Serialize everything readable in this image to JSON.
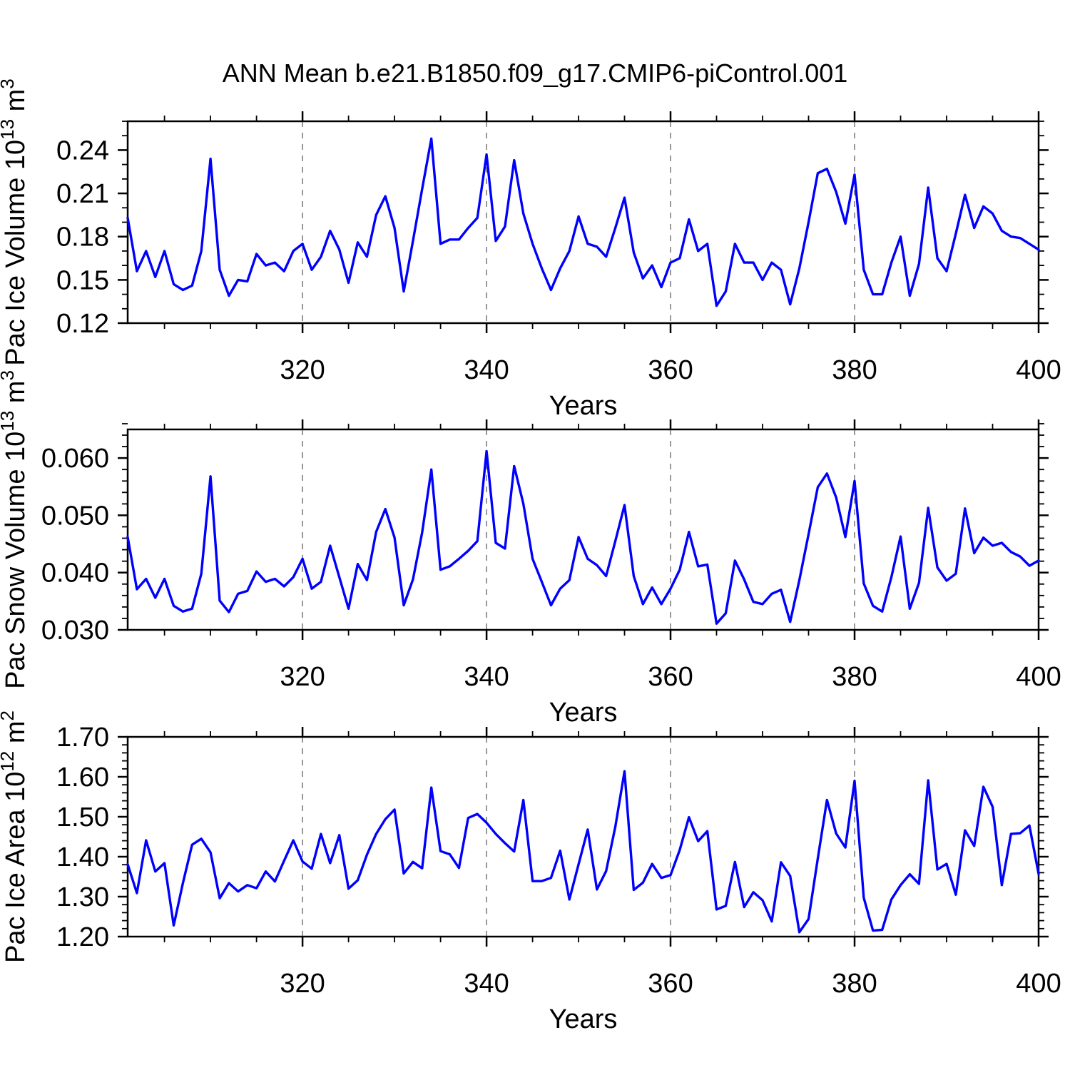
{
  "title": "ANN Mean b.e21.B1850.f09_g17.CMIP6-piControl.001",
  "colors": {
    "line": "#0000ff",
    "grid": "#808080",
    "axis": "#000000",
    "text": "#000000",
    "background": "#ffffff"
  },
  "x_axis": {
    "label": "Years",
    "x_start": 301,
    "x_end": 400,
    "x_step": 1,
    "major_ticks": [
      320,
      340,
      360,
      380,
      400
    ],
    "major_tick_labels": [
      "320",
      "340",
      "360",
      "380",
      "400"
    ],
    "minor_step": 5,
    "grid_years": [
      320,
      340,
      360,
      380
    ]
  },
  "chart_data": [
    {
      "type": "line",
      "name": "pac-ice-volume",
      "ylabel_parts": [
        {
          "text": "Pac Ice Volume 10"
        },
        {
          "text": "13",
          "sup": true
        },
        {
          "text": " m"
        },
        {
          "text": "3",
          "sup": true
        }
      ],
      "ylim": [
        0.12,
        0.26
      ],
      "yticks": {
        "major": [
          0.12,
          0.15,
          0.18,
          0.21,
          0.24
        ],
        "labels": [
          "0.12",
          "0.15",
          "0.18",
          "0.21",
          "0.24"
        ],
        "minor_step": 0.01
      },
      "values": [
        0.193,
        0.156,
        0.17,
        0.152,
        0.17,
        0.147,
        0.143,
        0.146,
        0.17,
        0.234,
        0.157,
        0.139,
        0.15,
        0.149,
        0.168,
        0.16,
        0.162,
        0.156,
        0.17,
        0.175,
        0.157,
        0.166,
        0.184,
        0.171,
        0.148,
        0.176,
        0.166,
        0.195,
        0.208,
        0.186,
        0.142,
        0.177,
        0.213,
        0.248,
        0.175,
        0.178,
        0.178,
        0.186,
        0.193,
        0.237,
        0.177,
        0.187,
        0.233,
        0.196,
        0.175,
        0.158,
        0.143,
        0.158,
        0.17,
        0.194,
        0.175,
        0.173,
        0.166,
        0.186,
        0.207,
        0.169,
        0.151,
        0.16,
        0.145,
        0.162,
        0.165,
        0.192,
        0.17,
        0.175,
        0.132,
        0.142,
        0.175,
        0.162,
        0.162,
        0.15,
        0.162,
        0.157,
        0.133,
        0.158,
        0.19,
        0.224,
        0.227,
        0.211,
        0.189,
        0.223,
        0.157,
        0.14,
        0.14,
        0.162,
        0.18,
        0.139,
        0.161,
        0.214,
        0.165,
        0.156,
        0.182,
        0.209,
        0.186,
        0.201,
        0.196,
        0.184,
        0.18,
        0.179,
        0.175,
        0.171
      ]
    },
    {
      "type": "line",
      "name": "pac-snow-volume",
      "ylabel_parts": [
        {
          "text": "Pac Snow Volume 10"
        },
        {
          "text": "13",
          "sup": true
        },
        {
          "text": " m"
        },
        {
          "text": "3",
          "sup": true
        }
      ],
      "ylim": [
        0.03,
        0.065
      ],
      "yticks": {
        "major": [
          0.03,
          0.04,
          0.05,
          0.06
        ],
        "labels": [
          "0.030",
          "0.040",
          "0.050",
          "0.060"
        ],
        "minor_step": 0.002
      },
      "values": [
        0.0462,
        0.0371,
        0.0389,
        0.0356,
        0.0389,
        0.0342,
        0.0332,
        0.0337,
        0.0398,
        0.0568,
        0.0351,
        0.0331,
        0.0363,
        0.0368,
        0.0402,
        0.0384,
        0.0389,
        0.0376,
        0.0392,
        0.0424,
        0.0372,
        0.0384,
        0.0447,
        0.0392,
        0.0337,
        0.0415,
        0.0387,
        0.0471,
        0.0511,
        0.0461,
        0.0343,
        0.0388,
        0.047,
        0.058,
        0.0405,
        0.0411,
        0.0424,
        0.0438,
        0.0455,
        0.0612,
        0.0452,
        0.0442,
        0.0586,
        0.052,
        0.0424,
        0.0384,
        0.0343,
        0.0372,
        0.0387,
        0.0462,
        0.0424,
        0.0413,
        0.0394,
        0.0455,
        0.0518,
        0.0394,
        0.0345,
        0.0374,
        0.0345,
        0.0372,
        0.0405,
        0.0471,
        0.0411,
        0.0414,
        0.0311,
        0.0329,
        0.0421,
        0.0388,
        0.0349,
        0.0345,
        0.0363,
        0.037,
        0.0314,
        0.0387,
        0.0467,
        0.0549,
        0.0573,
        0.0531,
        0.0462,
        0.056,
        0.0381,
        0.0342,
        0.0332,
        0.0392,
        0.0463,
        0.0337,
        0.0382,
        0.0513,
        0.0409,
        0.0386,
        0.0398,
        0.0512,
        0.0434,
        0.0461,
        0.0447,
        0.0452,
        0.0436,
        0.0428,
        0.0412,
        0.0421
      ]
    },
    {
      "type": "line",
      "name": "pac-ice-area",
      "ylabel_parts": [
        {
          "text": "Pac Ice Area 10"
        },
        {
          "text": "12",
          "sup": true
        },
        {
          "text": " m"
        },
        {
          "text": "2",
          "sup": true
        }
      ],
      "ylim": [
        1.2,
        1.7
      ],
      "yticks": {
        "major": [
          1.2,
          1.3,
          1.4,
          1.5,
          1.6,
          1.7
        ],
        "labels": [
          "1.20",
          "1.30",
          "1.40",
          "1.50",
          "1.60",
          "1.70"
        ],
        "minor_step": 0.02
      },
      "values": [
        1.381,
        1.309,
        1.441,
        1.363,
        1.384,
        1.228,
        1.334,
        1.43,
        1.445,
        1.411,
        1.296,
        1.334,
        1.313,
        1.329,
        1.321,
        1.363,
        1.338,
        1.39,
        1.441,
        1.388,
        1.37,
        1.457,
        1.384,
        1.454,
        1.32,
        1.341,
        1.405,
        1.457,
        1.494,
        1.518,
        1.358,
        1.387,
        1.371,
        1.573,
        1.414,
        1.406,
        1.372,
        1.497,
        1.507,
        1.485,
        1.457,
        1.434,
        1.413,
        1.542,
        1.339,
        1.339,
        1.347,
        1.415,
        1.293,
        1.381,
        1.468,
        1.318,
        1.364,
        1.475,
        1.614,
        1.317,
        1.335,
        1.382,
        1.347,
        1.354,
        1.417,
        1.499,
        1.439,
        1.464,
        1.268,
        1.277,
        1.387,
        1.274,
        1.311,
        1.291,
        1.238,
        1.386,
        1.352,
        1.211,
        1.244,
        1.395,
        1.542,
        1.458,
        1.423,
        1.59,
        1.297,
        1.215,
        1.217,
        1.293,
        1.329,
        1.356,
        1.332,
        1.591,
        1.368,
        1.382,
        1.305,
        1.466,
        1.427,
        1.575,
        1.525,
        1.329,
        1.457,
        1.459,
        1.478,
        1.357
      ]
    }
  ]
}
